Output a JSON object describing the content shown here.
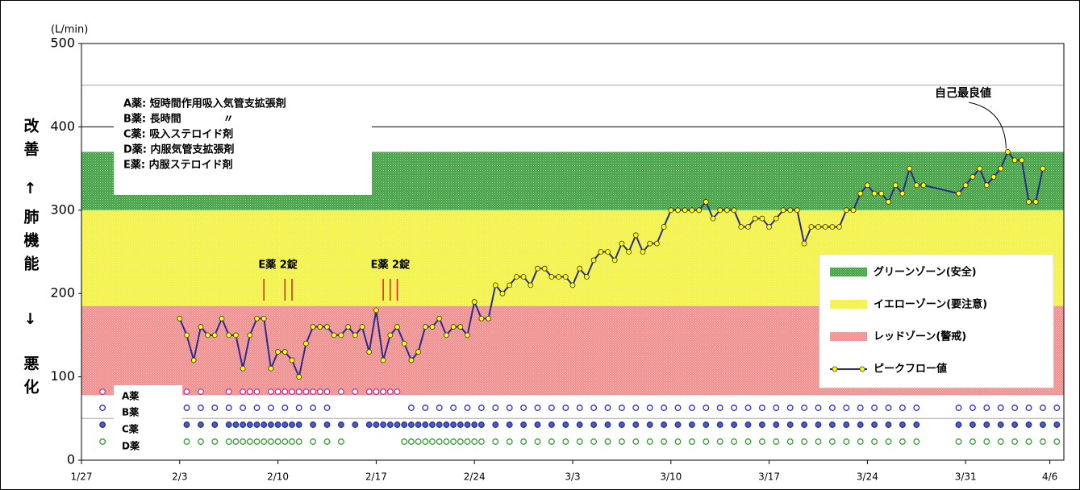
{
  "chart_data": {
    "type": "line",
    "y_unit": "(L/min)",
    "y_axis_label": [
      "改善",
      "↑",
      "肺機能",
      "↓",
      "悪化"
    ],
    "ylim": [
      0,
      500
    ],
    "yticks": [
      0,
      100,
      200,
      300,
      400,
      500
    ],
    "xlim": [
      0,
      70
    ],
    "xticks": [
      {
        "value": 0,
        "label": "1/27"
      },
      {
        "value": 7,
        "label": "2/3"
      },
      {
        "value": 14,
        "label": "2/10"
      },
      {
        "value": 21,
        "label": "2/17"
      },
      {
        "value": 28,
        "label": "2/24"
      },
      {
        "value": 35,
        "label": "3/3"
      },
      {
        "value": 42,
        "label": "3/10"
      },
      {
        "value": 49,
        "label": "3/17"
      },
      {
        "value": 56,
        "label": "3/24"
      },
      {
        "value": 63,
        "label": "3/31"
      },
      {
        "value": 69,
        "label": "4/6"
      }
    ],
    "reference_lines": [
      {
        "value": 450,
        "color": "#a0a0a0"
      },
      {
        "value": 400,
        "color": "#000000"
      },
      {
        "value": 50,
        "color": "#a0a0a0"
      }
    ],
    "zones": [
      {
        "name": "グリーンゾーン(安全)",
        "color": "#3f9f3f",
        "range": [
          300,
          370
        ]
      },
      {
        "name": "イエローゾーン(要注意)",
        "color": "#f2f240",
        "range": [
          185,
          300
        ]
      },
      {
        "name": "レッドゾーン(警戒)",
        "color": "#f08c8c",
        "range": [
          78,
          185
        ]
      }
    ],
    "x": [
      7,
      7.5,
      8,
      8.5,
      9,
      9.5,
      10,
      10.5,
      11,
      11.5,
      12,
      12.5,
      13,
      13.5,
      14,
      14.5,
      15,
      15.5,
      16,
      16.5,
      17,
      17.5,
      18,
      18.5,
      19,
      19.5,
      20,
      20.5,
      21,
      21.5,
      22,
      22.5,
      23,
      23.5,
      24,
      24.5,
      25,
      25.5,
      26,
      26.5,
      27,
      27.5,
      28,
      28.5,
      29,
      29.5,
      30,
      30.5,
      31,
      31.5,
      32,
      32.5,
      33,
      33.5,
      34,
      34.5,
      35,
      35.5,
      36,
      36.5,
      37,
      37.5,
      38,
      38.5,
      39,
      39.5,
      40,
      40.5,
      41,
      41.5,
      42,
      42.5,
      43,
      43.5,
      44,
      44.5,
      45,
      45.5,
      46,
      46.5,
      47,
      47.5,
      48,
      48.5,
      49,
      49.5,
      50,
      50.5,
      51,
      51.5,
      52,
      52.5,
      53,
      53.5,
      54,
      54.5,
      55,
      55.5,
      56,
      56.5,
      57,
      57.5,
      58,
      58.5,
      59,
      59.5,
      60,
      62.5,
      63,
      63.5,
      64,
      64.5,
      65,
      65.5,
      66,
      66.5,
      67,
      67.5,
      68,
      68.5
    ],
    "series": [
      {
        "name": "ピークフロー値",
        "color": "#2b2b8c",
        "marker_color": "#ffff00",
        "values": [
          170,
          150,
          120,
          160,
          150,
          150,
          170,
          150,
          150,
          110,
          150,
          170,
          170,
          110,
          130,
          130,
          120,
          100,
          140,
          160,
          160,
          160,
          150,
          150,
          160,
          150,
          160,
          130,
          180,
          120,
          150,
          160,
          140,
          120,
          130,
          160,
          160,
          170,
          150,
          160,
          160,
          150,
          190,
          170,
          170,
          210,
          200,
          210,
          220,
          220,
          210,
          230,
          230,
          220,
          220,
          220,
          210,
          230,
          220,
          240,
          250,
          250,
          240,
          260,
          250,
          270,
          250,
          260,
          260,
          280,
          300,
          300,
          300,
          300,
          300,
          310,
          290,
          300,
          300,
          300,
          280,
          280,
          290,
          290,
          280,
          290,
          300,
          300,
          300,
          260,
          280,
          280,
          280,
          280,
          280,
          300,
          300,
          320,
          330,
          320,
          320,
          310,
          330,
          320,
          350,
          330,
          330,
          320,
          330,
          340,
          350,
          330,
          340,
          350,
          370,
          360,
          360,
          310,
          310,
          350
        ]
      }
    ],
    "medications": [
      {
        "name": "A薬",
        "color": "#c0399b",
        "filled": false,
        "x": [
          1.5,
          7.5,
          8.5,
          10.5,
          11.5,
          12,
          12.5,
          13.5,
          14,
          14.5,
          15,
          15.5,
          16,
          16.5,
          17,
          17.5,
          18.5,
          19.5,
          20.5,
          21,
          21.5,
          22,
          22.5
        ]
      },
      {
        "name": "B薬",
        "color": "#2a2ad0",
        "filled": false,
        "x": [
          1.5,
          7.5,
          8.5,
          9.5,
          10.5,
          11.5,
          12.5,
          13.5,
          14.5,
          15.5,
          16.5,
          17.5,
          23.5,
          24.5,
          25.5,
          26.5,
          27.5,
          28.5,
          29.5,
          30.5,
          31.5,
          32.5,
          33.5,
          34.5,
          35.5,
          36.5,
          37.5,
          38.5,
          39.5,
          40.5,
          41.5,
          42.5,
          43.5,
          44.5,
          45.5,
          46.5,
          47.5,
          48.5,
          49.5,
          50.5,
          51.5,
          52.5,
          53.5,
          54.5,
          55.5,
          56.5,
          57.5,
          58.5,
          59.5,
          62.5,
          63.5,
          64.5,
          65.5,
          66.5,
          67.5,
          68.5,
          69.5
        ]
      },
      {
        "name": "C薬",
        "color": "#4a5ad0",
        "filled": true,
        "x": [
          1.5,
          7.5,
          8.5,
          9.5,
          10.5,
          11,
          11.5,
          12,
          12.5,
          13,
          13.5,
          14,
          14.5,
          15,
          15.5,
          16.5,
          17.5,
          18.5,
          19.5,
          20.5,
          21,
          21.5,
          22,
          22.5,
          23,
          23.5,
          24,
          24.5,
          25,
          25.5,
          26,
          26.5,
          27,
          27.5,
          28,
          28.5,
          29.5,
          30.5,
          31.5,
          32.5,
          33.5,
          34.5,
          35.5,
          36.5,
          37.5,
          38.5,
          39.5,
          40.5,
          41.5,
          42.5,
          43.5,
          44.5,
          45.5,
          46.5,
          47.5,
          48.5,
          49.5,
          50.5,
          51.5,
          52.5,
          53.5,
          54.5,
          55.5,
          56.5,
          57.5,
          58.5,
          59.5,
          62.5,
          63.5,
          64.5,
          65.5,
          66.5,
          67.5,
          68.5,
          69.5
        ]
      },
      {
        "name": "D薬",
        "color": "#2e9e2e",
        "filled": false,
        "x": [
          1.5,
          7.5,
          8.5,
          9.5,
          10.5,
          11,
          11.5,
          12,
          12.5,
          13,
          13.5,
          14,
          14.5,
          15,
          15.5,
          16.5,
          17.5,
          18.5,
          23,
          23.5,
          24,
          24.5,
          25,
          25.5,
          26,
          26.5,
          27,
          27.5,
          28,
          28.5,
          29.5,
          30.5,
          31.5,
          32.5,
          33.5,
          34.5,
          35.5,
          36.5,
          37.5,
          38.5,
          39.5,
          40.5,
          41.5,
          42.5,
          43.5,
          44.5,
          45.5,
          46.5,
          47.5,
          48.5,
          49.5,
          50.5,
          51.5,
          52.5,
          53.5,
          54.5,
          55.5,
          56.5,
          57.5,
          58.5,
          59.5,
          62.5,
          63.5,
          64.5,
          65.5,
          66.5,
          67.5,
          68.5,
          69.5
        ]
      }
    ],
    "annotations": [
      {
        "text": "E薬 2錠",
        "color": "#e02020",
        "x": [
          13,
          14.5,
          15
        ]
      },
      {
        "text": "E薬 2錠",
        "color": "#e02020",
        "x": [
          21.5,
          22,
          22.5
        ]
      }
    ],
    "best_label": "自己最良値",
    "drug_notes": [
      "A薬: 短時間作用吸入気管支拡張剤",
      "B薬: 長時間　　　　〃",
      "C薬: 吸入ステロイド剤",
      "D薬: 内服気管支拡張剤",
      "E薬: 内服ステロイド剤"
    ]
  }
}
